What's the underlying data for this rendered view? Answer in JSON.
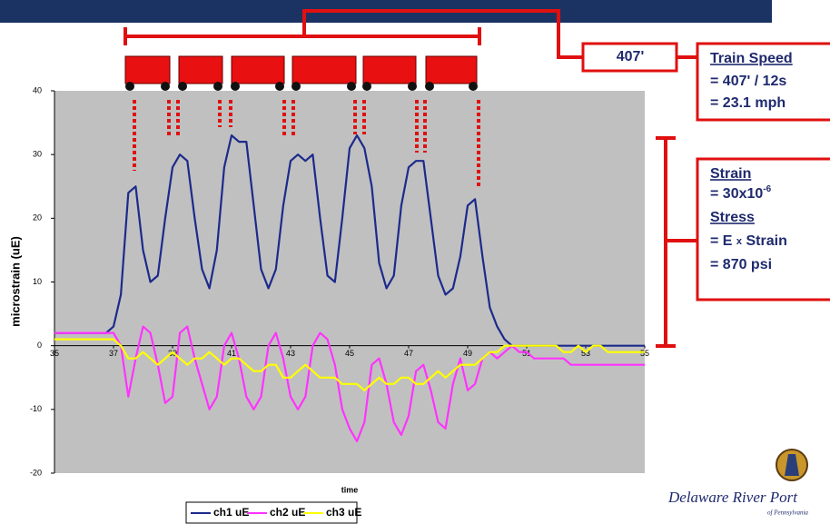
{
  "chart_data": {
    "type": "line",
    "x_label": "time",
    "y_label": "microstrain (uE)",
    "xlim": [
      35,
      55
    ],
    "ylim": [
      -20,
      40
    ],
    "xticks": [
      35,
      37,
      39,
      41,
      43,
      45,
      47,
      49,
      51,
      53,
      55
    ],
    "yticks": [
      -20,
      -10,
      0,
      10,
      20,
      30,
      40
    ],
    "grid": false,
    "x": [
      35,
      35.25,
      35.5,
      35.75,
      36,
      36.25,
      36.5,
      36.75,
      37,
      37.25,
      37.5,
      37.75,
      38,
      38.25,
      38.5,
      38.75,
      39,
      39.25,
      39.5,
      39.75,
      40,
      40.25,
      40.5,
      40.75,
      41,
      41.25,
      41.5,
      41.75,
      42,
      42.25,
      42.5,
      42.75,
      43,
      43.25,
      43.5,
      43.75,
      44,
      44.25,
      44.5,
      44.75,
      45,
      45.25,
      45.5,
      45.75,
      46,
      46.25,
      46.5,
      46.75,
      47,
      47.25,
      47.5,
      47.75,
      48,
      48.25,
      48.5,
      48.75,
      49,
      49.25,
      49.5,
      49.75,
      50,
      50.25,
      50.5,
      50.75,
      51,
      51.25,
      51.5,
      51.75,
      52,
      52.25,
      52.5,
      52.75,
      53,
      53.25,
      53.5,
      53.75,
      54,
      54.25,
      54.5,
      54.75,
      55
    ],
    "series": [
      {
        "name": "ch1 uE",
        "color": "#1c2a8c",
        "values": [
          2,
          2,
          2,
          2,
          2,
          2,
          2,
          2,
          3,
          8,
          24,
          25,
          15,
          10,
          11,
          20,
          28,
          30,
          29,
          20,
          12,
          9,
          15,
          28,
          33,
          32,
          32,
          22,
          12,
          9,
          12,
          22,
          29,
          30,
          29,
          30,
          20,
          11,
          10,
          20,
          31,
          33,
          31,
          25,
          13,
          9,
          11,
          22,
          28,
          29,
          29,
          20,
          11,
          8,
          9,
          14,
          22,
          23,
          14,
          6,
          3,
          1,
          0,
          0,
          0,
          0,
          0,
          0,
          0,
          0,
          0,
          0,
          0,
          0,
          0,
          0,
          0,
          0,
          0,
          0,
          0
        ]
      },
      {
        "name": "ch2 uE",
        "color": "#ff33ff",
        "values": [
          2,
          2,
          2,
          2,
          2,
          2,
          2,
          2,
          2,
          0,
          -8,
          -2,
          3,
          2,
          -3,
          -9,
          -8,
          2,
          3,
          -2,
          -6,
          -10,
          -8,
          0,
          2,
          -2,
          -8,
          -10,
          -8,
          0,
          2,
          -2,
          -8,
          -10,
          -8,
          0,
          2,
          1,
          -3,
          -10,
          -13,
          -15,
          -12,
          -3,
          -2,
          -6,
          -12,
          -14,
          -11,
          -4,
          -3,
          -7,
          -12,
          -13,
          -6,
          -2,
          -7,
          -6,
          -2,
          -1,
          -2,
          -1,
          0,
          -1,
          -1,
          -2,
          -2,
          -2,
          -2,
          -2,
          -3,
          -3,
          -3,
          -3,
          -3,
          -3,
          -3,
          -3,
          -3,
          -3,
          -3
        ]
      },
      {
        "name": "ch3 uE",
        "color": "#ffff00",
        "values": [
          1,
          1,
          1,
          1,
          1,
          1,
          1,
          1,
          1,
          0,
          -2,
          -2,
          -1,
          -2,
          -3,
          -2,
          -1,
          -2,
          -3,
          -2,
          -2,
          -1,
          -2,
          -3,
          -2,
          -2,
          -3,
          -4,
          -4,
          -3,
          -3,
          -5,
          -5,
          -4,
          -3,
          -4,
          -5,
          -5,
          -5,
          -6,
          -6,
          -6,
          -7,
          -6,
          -5,
          -6,
          -6,
          -5,
          -5,
          -6,
          -6,
          -5,
          -4,
          -5,
          -4,
          -3,
          -3,
          -3,
          -2,
          -1,
          -1,
          0,
          0,
          0,
          0,
          0,
          0,
          0,
          0,
          -1,
          -1,
          0,
          -1,
          0,
          0,
          -1,
          -1,
          -1,
          -1,
          -1,
          -1
        ]
      }
    ],
    "annotations": {
      "distance": "407'",
      "speed_title": "Train Speed",
      "speed_line1": "= 407' / 12s",
      "speed_line2": "= 23.1 mph",
      "strain_title": "Strain",
      "strain_value": "= 30x10",
      "strain_exponent": "-6",
      "stress_title": "Stress",
      "stress_formula_a": "= E",
      "stress_formula_x": "x",
      "stress_formula_b": "Strain",
      "stress_value": "= 870 psi",
      "logo_name": "Delaware River Port",
      "logo_sub": "of Pennsylvania"
    }
  }
}
